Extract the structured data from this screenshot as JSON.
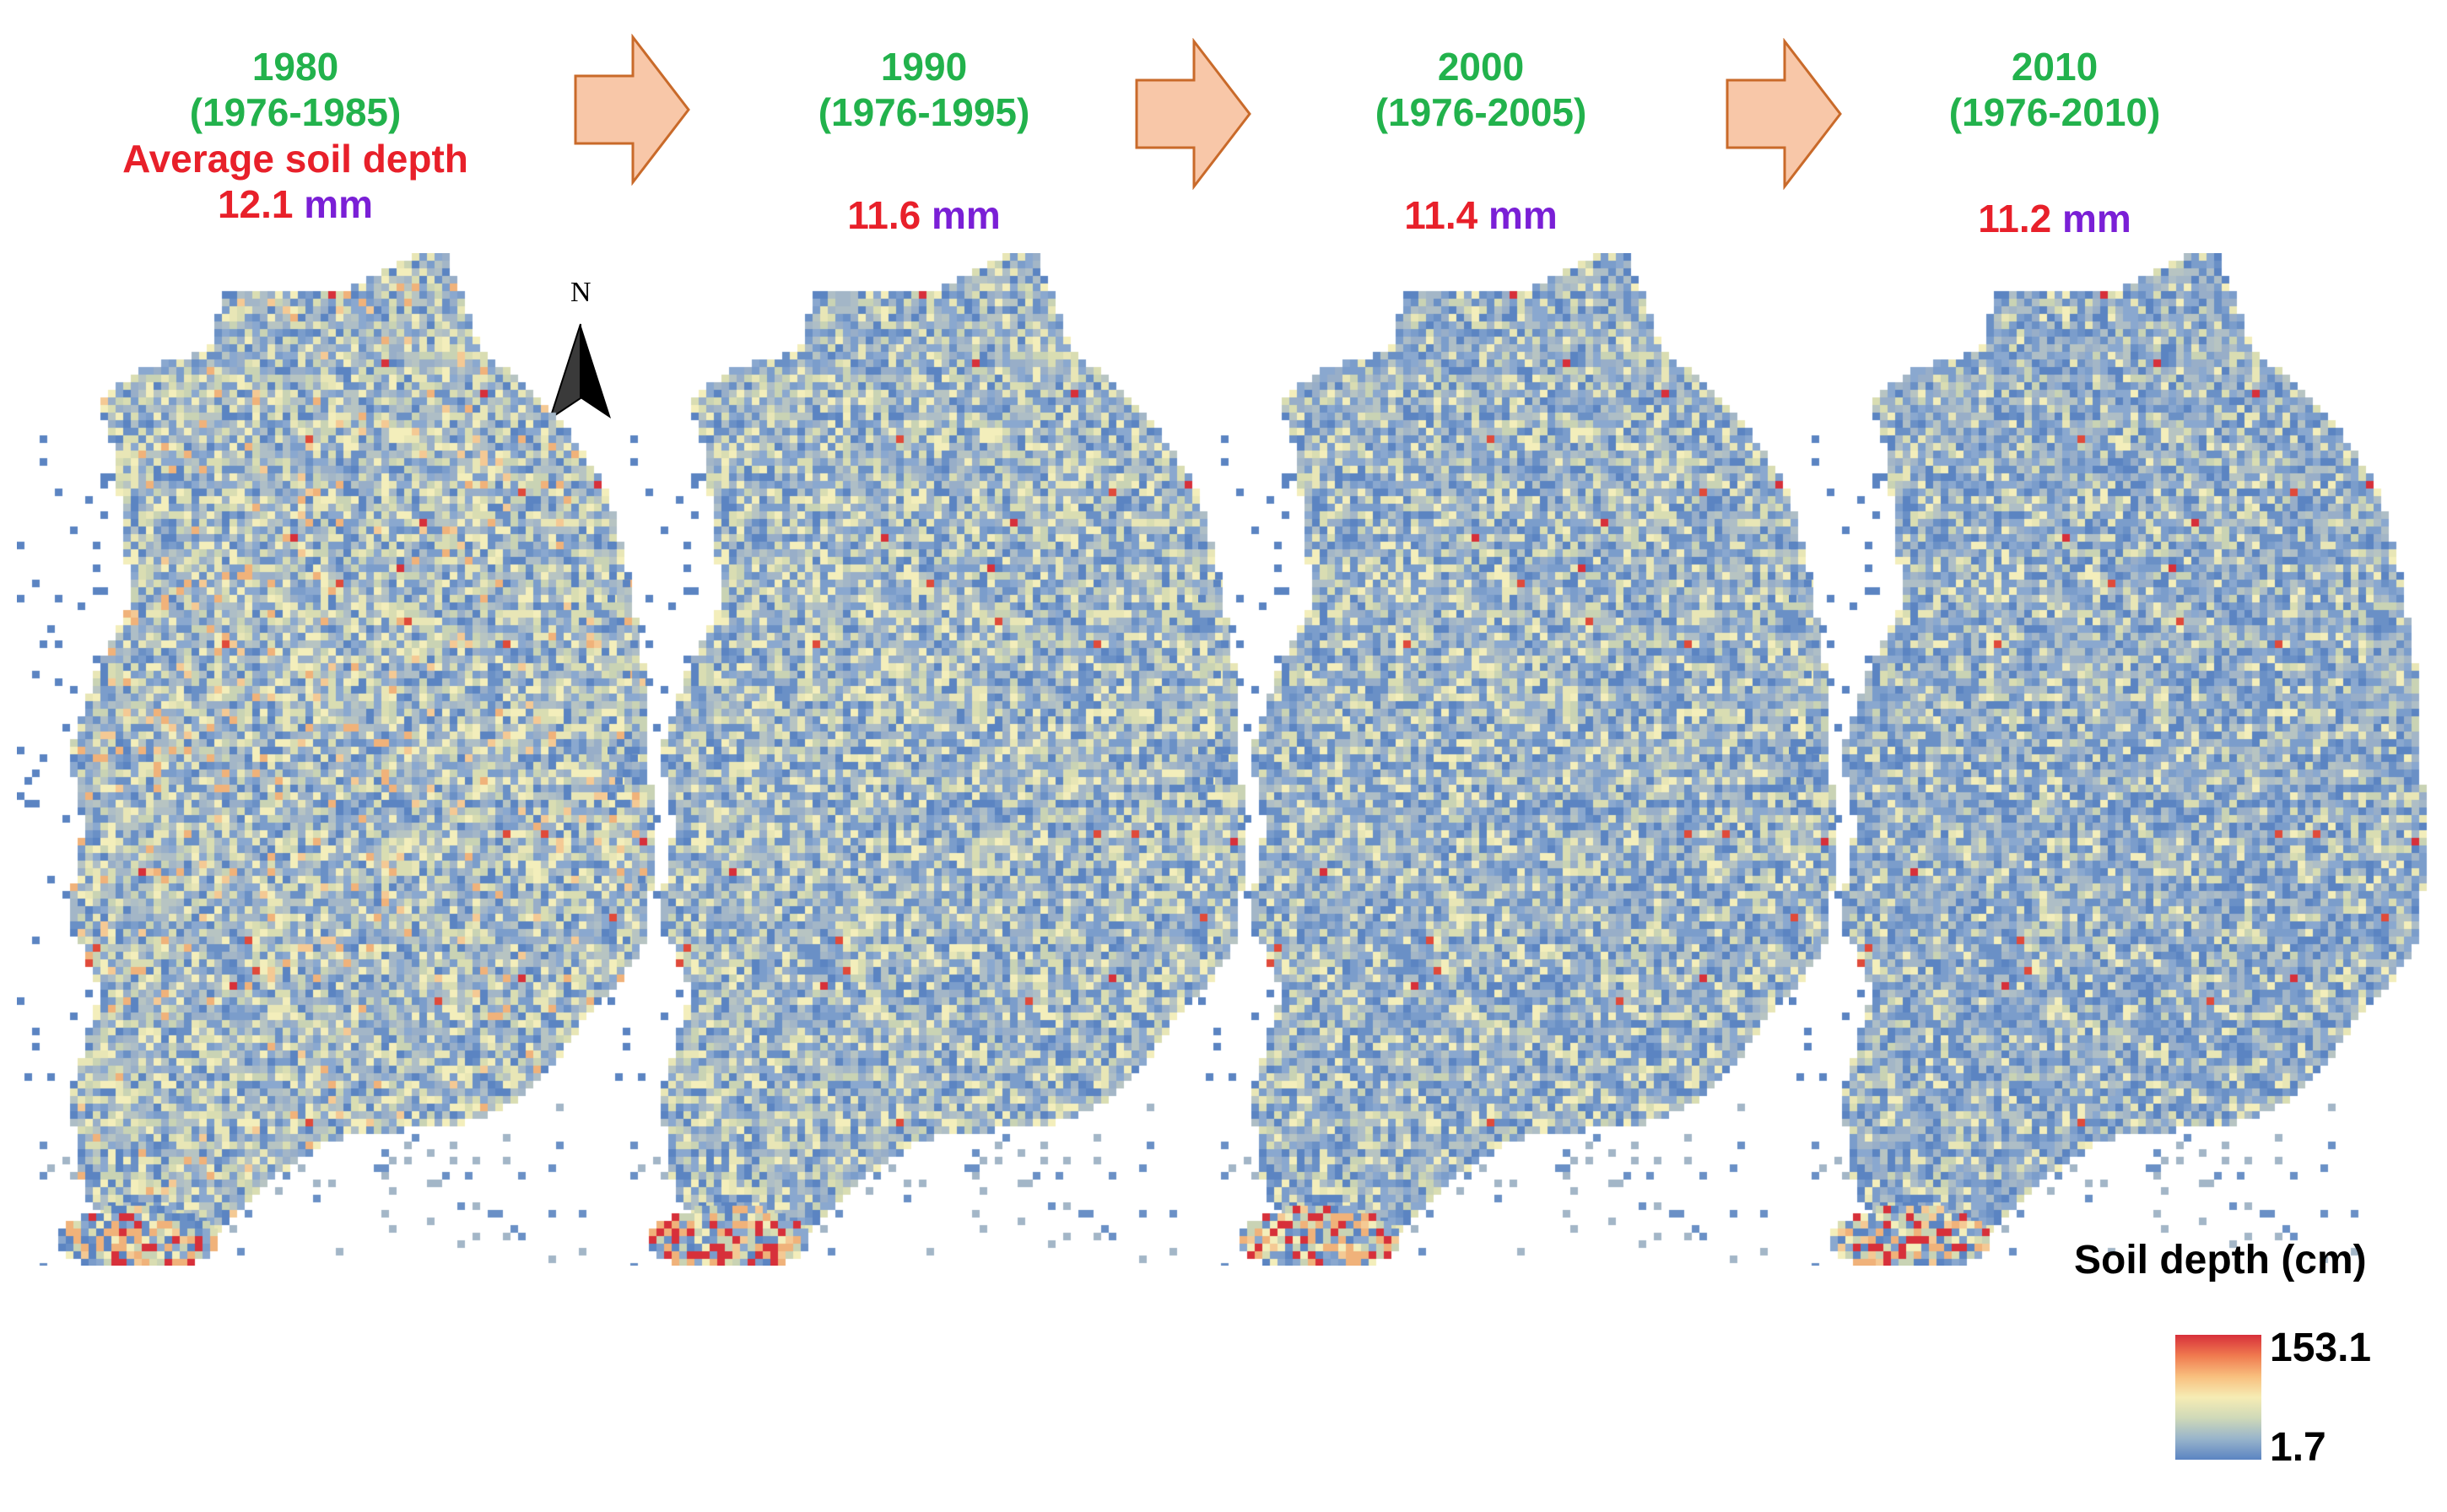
{
  "panels": [
    {
      "year": "1980",
      "range": "(1976-1985)",
      "avg_label": "Average soil depth",
      "value": "12.1",
      "unit": "mm"
    },
    {
      "year": "1990",
      "range": "(1976-1995)",
      "avg_label": "",
      "value": "11.6",
      "unit": "mm"
    },
    {
      "year": "2000",
      "range": "(1976-2005)",
      "avg_label": "",
      "value": "11.4",
      "unit": "mm"
    },
    {
      "year": "2010",
      "range": "(1976-2010)",
      "avg_label": "",
      "value": "11.2",
      "unit": "mm"
    }
  ],
  "north_arrow": {
    "letter": "N"
  },
  "legend": {
    "title": "Soil depth (cm)",
    "max": "153.1",
    "min": "1.7",
    "colors": [
      "#d7303a",
      "#f07a4f",
      "#f8bf7e",
      "#f6ecb4",
      "#cfd9b8",
      "#98b4cb",
      "#5b84c2"
    ]
  },
  "colors": {
    "year_text": "#22b24c",
    "value_text": "#e8202a",
    "unit_text": "#7a1fd6",
    "arrow_fill": "#f8c7a8",
    "arrow_stroke": "#c96a2a"
  }
}
